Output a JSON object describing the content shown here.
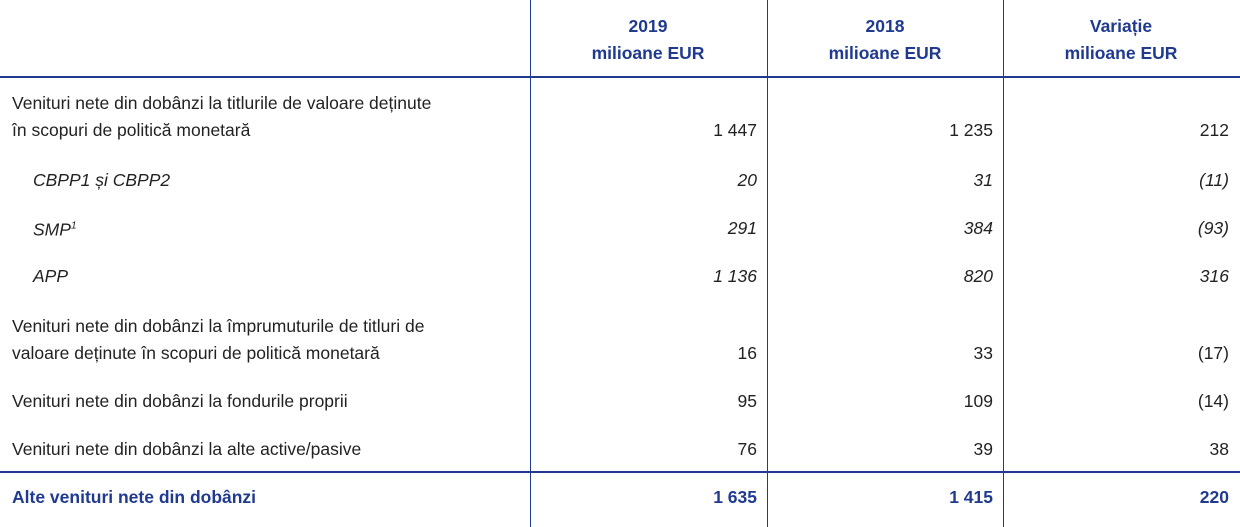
{
  "table": {
    "columns": [
      {
        "year": "2019",
        "unit": "milioane EUR"
      },
      {
        "year": "2018",
        "unit": "milioane EUR"
      },
      {
        "year": "Variație",
        "unit": "milioane EUR"
      }
    ],
    "rows": [
      {
        "label": [
          "Venituri nete din dobânzi la titlurile de valoare deținute",
          "în scopuri de politică monetară"
        ],
        "values": [
          "1 447",
          "1 235",
          "212"
        ]
      },
      {
        "label": [
          "CBPP1 și CBPP2"
        ],
        "values": [
          "20",
          "31",
          "(11)"
        ]
      },
      {
        "label": [
          "SMP"
        ],
        "note": "1",
        "values": [
          "291",
          "384",
          "(93)"
        ]
      },
      {
        "label": [
          "APP"
        ],
        "values": [
          "1 136",
          "820",
          "316"
        ]
      },
      {
        "label": [
          "Venituri nete din dobânzi la împrumuturile de titluri de",
          "valoare deținute în scopuri de politică monetară"
        ],
        "values": [
          "16",
          "33",
          "(17)"
        ]
      },
      {
        "label": [
          "Venituri nete din dobânzi la fondurile proprii"
        ],
        "values": [
          "95",
          "109",
          "(14)"
        ]
      },
      {
        "label": [
          "Venituri nete din dobânzi la alte active/pasive"
        ],
        "values": [
          "76",
          "39",
          "38"
        ]
      }
    ],
    "total": {
      "label": "Alte venituri nete din dobânzi",
      "values": [
        "1 635",
        "1 415",
        "220"
      ]
    }
  }
}
